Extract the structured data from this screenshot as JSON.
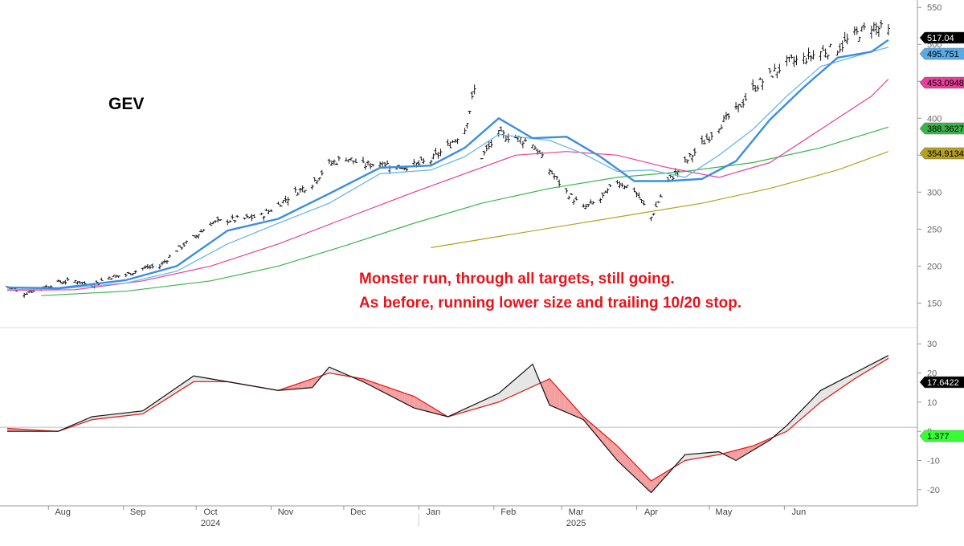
{
  "chart_data": {
    "type": "line",
    "title": "GEV",
    "annotations": [
      "Monster run, through all targets, still going.",
      "As before, running lower size and trailing 10/20 stop."
    ],
    "x_months": [
      "Aug",
      "Sep",
      "Oct",
      "Nov",
      "Dec",
      "Jan",
      "Feb",
      "Mar",
      "Apr",
      "May",
      "Jun"
    ],
    "x_years": [
      "2024",
      "2025"
    ],
    "x_range": [
      "2024-07-15",
      "2025-06-20"
    ],
    "price_panel": {
      "ylim": [
        120,
        560
      ],
      "yticks": [
        150,
        200,
        250,
        300,
        350,
        400,
        450,
        500,
        550
      ],
      "value_labels": [
        {
          "text": "517.04",
          "value": 517.04,
          "color": "#000000",
          "text_color": "#ffffff"
        },
        {
          "text": "495.751",
          "value": 495.751,
          "color": "#5aaae6",
          "text_color": "#000000"
        },
        {
          "text": "453.0948",
          "value": 453.0948,
          "color": "#e83e9a",
          "text_color": "#000000"
        },
        {
          "text": "388.3627",
          "value": 388.3627,
          "color": "#3ab54a",
          "text_color": "#000000"
        },
        {
          "text": "354.9134",
          "value": 354.9134,
          "color": "#b5a020",
          "text_color": "#000000"
        }
      ],
      "price_points": [
        [
          "2024-07-15",
          172
        ],
        [
          "2024-07-22",
          163
        ],
        [
          "2024-07-29",
          170
        ],
        [
          "2024-08-05",
          178
        ],
        [
          "2024-08-12",
          180
        ],
        [
          "2024-08-19",
          174
        ],
        [
          "2024-08-26",
          185
        ],
        [
          "2024-09-02",
          188
        ],
        [
          "2024-09-09",
          197
        ],
        [
          "2024-09-16",
          200
        ],
        [
          "2024-09-23",
          222
        ],
        [
          "2024-09-30",
          238
        ],
        [
          "2024-10-07",
          258
        ],
        [
          "2024-10-14",
          262
        ],
        [
          "2024-10-21",
          264
        ],
        [
          "2024-10-28",
          268
        ],
        [
          "2024-11-04",
          283
        ],
        [
          "2024-11-11",
          300
        ],
        [
          "2024-11-18",
          312
        ],
        [
          "2024-11-25",
          338
        ],
        [
          "2024-12-02",
          347
        ],
        [
          "2024-12-09",
          336
        ],
        [
          "2024-12-16",
          340
        ],
        [
          "2024-12-23",
          334
        ],
        [
          "2024-12-30",
          336
        ],
        [
          "2025-01-06",
          343
        ],
        [
          "2025-01-13",
          362
        ],
        [
          "2025-01-20",
          385
        ],
        [
          "2025-01-24",
          438
        ],
        [
          "2025-01-27",
          348
        ],
        [
          "2025-02-03",
          378
        ],
        [
          "2025-02-10",
          374
        ],
        [
          "2025-02-17",
          366
        ],
        [
          "2025-02-24",
          330
        ],
        [
          "2025-03-03",
          300
        ],
        [
          "2025-03-10",
          278
        ],
        [
          "2025-03-17",
          290
        ],
        [
          "2025-03-24",
          315
        ],
        [
          "2025-03-31",
          303
        ],
        [
          "2025-04-07",
          266
        ],
        [
          "2025-04-14",
          315
        ],
        [
          "2025-04-21",
          340
        ],
        [
          "2025-04-28",
          365
        ],
        [
          "2025-05-05",
          390
        ],
        [
          "2025-05-12",
          410
        ],
        [
          "2025-05-19",
          440
        ],
        [
          "2025-05-26",
          458
        ],
        [
          "2025-06-02",
          475
        ],
        [
          "2025-06-09",
          480
        ],
        [
          "2025-06-16",
          490
        ],
        [
          "2025-06-23",
          495
        ],
        [
          "2025-06-30",
          512
        ],
        [
          "2025-07-07",
          525
        ],
        [
          "2025-07-14",
          517
        ]
      ],
      "series": [
        {
          "label": "10",
          "color": "#3a8ee0",
          "width": 2.4,
          "points": [
            [
              "2024-07-15",
              171
            ],
            [
              "2024-08-05",
              170
            ],
            [
              "2024-09-02",
              181
            ],
            [
              "2024-09-23",
              200
            ],
            [
              "2024-10-14",
              248
            ],
            [
              "2024-11-04",
              264
            ],
            [
              "2024-11-25",
              298
            ],
            [
              "2024-12-16",
              333
            ],
            [
              "2025-01-06",
              336
            ],
            [
              "2025-01-20",
              360
            ],
            [
              "2025-02-03",
              400
            ],
            [
              "2025-02-17",
              373
            ],
            [
              "2025-03-03",
              375
            ],
            [
              "2025-03-17",
              348
            ],
            [
              "2025-03-31",
              315
            ],
            [
              "2025-04-14",
              315
            ],
            [
              "2025-04-28",
              318
            ],
            [
              "2025-05-12",
              342
            ],
            [
              "2025-05-26",
              398
            ],
            [
              "2025-06-09",
              442
            ],
            [
              "2025-06-23",
              482
            ],
            [
              "2025-07-07",
              490
            ],
            [
              "2025-07-14",
              506
            ]
          ]
        },
        {
          "label": "20",
          "color": "#6ab6ee",
          "width": 1.3,
          "points": [
            [
              "2024-07-15",
              168
            ],
            [
              "2024-08-05",
              169
            ],
            [
              "2024-09-02",
              177
            ],
            [
              "2024-09-23",
              193
            ],
            [
              "2024-10-14",
              230
            ],
            [
              "2024-11-04",
              258
            ],
            [
              "2024-11-25",
              285
            ],
            [
              "2024-12-16",
              325
            ],
            [
              "2025-01-06",
              330
            ],
            [
              "2025-01-20",
              348
            ],
            [
              "2025-02-03",
              378
            ],
            [
              "2025-02-24",
              370
            ],
            [
              "2025-03-10",
              352
            ],
            [
              "2025-03-24",
              328
            ],
            [
              "2025-04-07",
              330
            ],
            [
              "2025-04-21",
              320
            ],
            [
              "2025-05-05",
              350
            ],
            [
              "2025-05-19",
              385
            ],
            [
              "2025-06-02",
              430
            ],
            [
              "2025-06-16",
              470
            ],
            [
              "2025-07-07",
              490
            ],
            [
              "2025-07-14",
              496
            ]
          ]
        },
        {
          "label": "50",
          "color": "#e83e9a",
          "width": 1.2,
          "points": [
            [
              "2024-07-15",
              167
            ],
            [
              "2024-08-12",
              168
            ],
            [
              "2024-09-09",
              180
            ],
            [
              "2024-10-07",
              200
            ],
            [
              "2024-11-04",
              230
            ],
            [
              "2024-12-02",
              265
            ],
            [
              "2024-12-30",
              300
            ],
            [
              "2025-01-20",
              325
            ],
            [
              "2025-02-10",
              350
            ],
            [
              "2025-03-03",
              355
            ],
            [
              "2025-03-24",
              350
            ],
            [
              "2025-04-14",
              333
            ],
            [
              "2025-05-05",
              320
            ],
            [
              "2025-05-26",
              340
            ],
            [
              "2025-06-16",
              385
            ],
            [
              "2025-07-07",
              430
            ],
            [
              "2025-07-14",
              453
            ]
          ]
        },
        {
          "label": "100",
          "color": "#3ab54a",
          "width": 1.2,
          "points": [
            [
              "2024-07-29",
              160
            ],
            [
              "2024-09-02",
              166
            ],
            [
              "2024-10-07",
              180
            ],
            [
              "2024-11-04",
              200
            ],
            [
              "2024-12-02",
              228
            ],
            [
              "2024-12-30",
              258
            ],
            [
              "2025-01-27",
              285
            ],
            [
              "2025-02-24",
              305
            ],
            [
              "2025-03-24",
              320
            ],
            [
              "2025-04-21",
              328
            ],
            [
              "2025-05-19",
              340
            ],
            [
              "2025-06-16",
              360
            ],
            [
              "2025-07-14",
              388
            ]
          ]
        },
        {
          "label": "200",
          "color": "#b5a020",
          "width": 1.2,
          "points": [
            [
              "2025-01-06",
              225
            ],
            [
              "2025-02-03",
              240
            ],
            [
              "2025-03-03",
              255
            ],
            [
              "2025-03-31",
              270
            ],
            [
              "2025-04-28",
              285
            ],
            [
              "2025-05-26",
              305
            ],
            [
              "2025-06-23",
              330
            ],
            [
              "2025-07-14",
              355
            ]
          ]
        }
      ]
    },
    "oscillator_panel": {
      "ylim": [
        -25,
        35
      ],
      "yticks": [
        -20,
        -10,
        0,
        10,
        20,
        30
      ],
      "zero_line": 1.377,
      "value_labels": [
        {
          "text": "17.6422",
          "value": 17.6422,
          "color": "#000000",
          "text_color": "#ffffff"
        },
        {
          "text": "1.377",
          "value": 1.377,
          "color": "#33ff33",
          "text_color": "#000000"
        }
      ],
      "fast": [
        [
          "2024-07-15",
          0
        ],
        [
          "2024-08-05",
          0
        ],
        [
          "2024-08-19",
          5
        ],
        [
          "2024-09-09",
          7
        ],
        [
          "2024-09-30",
          19
        ],
        [
          "2024-10-14",
          17
        ],
        [
          "2024-11-04",
          14
        ],
        [
          "2024-11-18",
          15
        ],
        [
          "2024-11-25",
          22
        ],
        [
          "2024-12-09",
          17
        ],
        [
          "2024-12-30",
          8
        ],
        [
          "2025-01-13",
          5
        ],
        [
          "2025-02-03",
          13
        ],
        [
          "2025-02-17",
          23
        ],
        [
          "2025-02-24",
          9
        ],
        [
          "2025-03-10",
          4
        ],
        [
          "2025-03-24",
          -10
        ],
        [
          "2025-04-07",
          -21
        ],
        [
          "2025-04-21",
          -8
        ],
        [
          "2025-05-05",
          -7
        ],
        [
          "2025-05-12",
          -10
        ],
        [
          "2025-05-26",
          -3
        ],
        [
          "2025-06-02",
          2
        ],
        [
          "2025-06-16",
          14
        ],
        [
          "2025-06-30",
          20
        ],
        [
          "2025-07-14",
          26
        ]
      ],
      "slow": [
        [
          "2024-07-15",
          1
        ],
        [
          "2024-08-05",
          0
        ],
        [
          "2024-08-19",
          4
        ],
        [
          "2024-09-09",
          6
        ],
        [
          "2024-09-30",
          17
        ],
        [
          "2024-10-14",
          17
        ],
        [
          "2024-11-04",
          14
        ],
        [
          "2024-11-25",
          20
        ],
        [
          "2024-12-09",
          18
        ],
        [
          "2024-12-30",
          12
        ],
        [
          "2025-01-13",
          5
        ],
        [
          "2025-02-03",
          10
        ],
        [
          "2025-02-24",
          18
        ],
        [
          "2025-03-10",
          5
        ],
        [
          "2025-03-24",
          -5
        ],
        [
          "2025-04-07",
          -17
        ],
        [
          "2025-04-21",
          -10
        ],
        [
          "2025-05-05",
          -8
        ],
        [
          "2025-05-19",
          -5
        ],
        [
          "2025-06-02",
          0
        ],
        [
          "2025-06-16",
          10
        ],
        [
          "2025-06-30",
          18
        ],
        [
          "2025-07-14",
          25
        ]
      ]
    }
  }
}
